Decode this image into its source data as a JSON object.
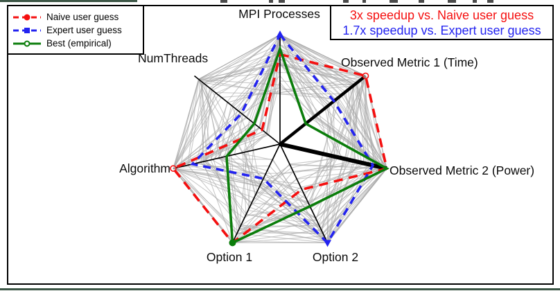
{
  "colors": {
    "naive": "#f50f0f",
    "expert": "#2323f0",
    "best": "#0b7d0b",
    "axis": "#000000",
    "sample": "#a9a9a9",
    "frame": "#000000",
    "rule": "#3d5747"
  },
  "legend": {
    "items": [
      {
        "label": "Naive user guess",
        "series": "naive",
        "line": "dashed",
        "marker": "circle-filled"
      },
      {
        "label": "Expert user guess",
        "series": "expert",
        "line": "dashed",
        "marker": "square-filled"
      },
      {
        "label": "Best (empirical)",
        "series": "best",
        "line": "solid",
        "marker": "circle-open"
      }
    ]
  },
  "annotations": [
    {
      "text": "3x speedup vs. Naive user guess",
      "color": "naive"
    },
    {
      "text": "1.7x speedup vs. Expert user guess",
      "color": "expert"
    }
  ],
  "chart_data": {
    "type": "radar",
    "title": "",
    "value_range": [
      0,
      1
    ],
    "grid": false,
    "legend_position": "top-left",
    "axes": [
      {
        "label": "MPI Processes",
        "angle_deg": 90,
        "emphasis": false
      },
      {
        "label": "Observed Metric 1 (Time)",
        "angle_deg": 38.57,
        "emphasis": true
      },
      {
        "label": "Observed Metric 2 (Power)",
        "angle_deg": -12.86,
        "emphasis": true
      },
      {
        "label": "Option 2",
        "angle_deg": -64.29,
        "emphasis": false
      },
      {
        "label": "Option 1",
        "angle_deg": -115.71,
        "emphasis": false
      },
      {
        "label": "Algorithm",
        "angle_deg": -167.14,
        "emphasis": false
      },
      {
        "label": "NumThreads",
        "angle_deg": 141.43,
        "emphasis": false
      }
    ],
    "series": [
      {
        "name": "Naive user guess",
        "color": "naive",
        "dash": [
          13,
          9
        ],
        "width": 3.6,
        "values": [
          0.82,
          1.0,
          1.0,
          0.46,
          1.0,
          1.0,
          0.21
        ],
        "markers": [
          {
            "axis": 1,
            "shape": "circle-open"
          },
          {
            "axis": 5,
            "shape": "circle-open"
          }
        ]
      },
      {
        "name": "Expert user guess",
        "color": "expert",
        "dash": [
          11,
          8
        ],
        "width": 3.6,
        "values": [
          1.0,
          0.63,
          0.87,
          1.0,
          0.35,
          0.82,
          0.45
        ],
        "markers": [
          {
            "axis": 0,
            "shape": "triangle-up"
          },
          {
            "axis": 3,
            "shape": "triangle-down"
          }
        ]
      },
      {
        "name": "Best (empirical)",
        "color": "best",
        "dash": [],
        "width": 3.6,
        "values": [
          0.87,
          0.3,
          1.0,
          0.63,
          1.0,
          0.5,
          0.3
        ],
        "markers": [
          {
            "axis": 4,
            "shape": "circle-filled"
          }
        ]
      }
    ],
    "gray_samples": {
      "count": 58,
      "seed": 7,
      "peak_prob": 0.22,
      "per_axis_range": [
        [
          0.45,
          1
        ],
        [
          0.35,
          1
        ],
        [
          0.35,
          1
        ],
        [
          0.15,
          1
        ],
        [
          0.15,
          1
        ],
        [
          0.2,
          1
        ],
        [
          0.1,
          0.95
        ]
      ]
    }
  }
}
